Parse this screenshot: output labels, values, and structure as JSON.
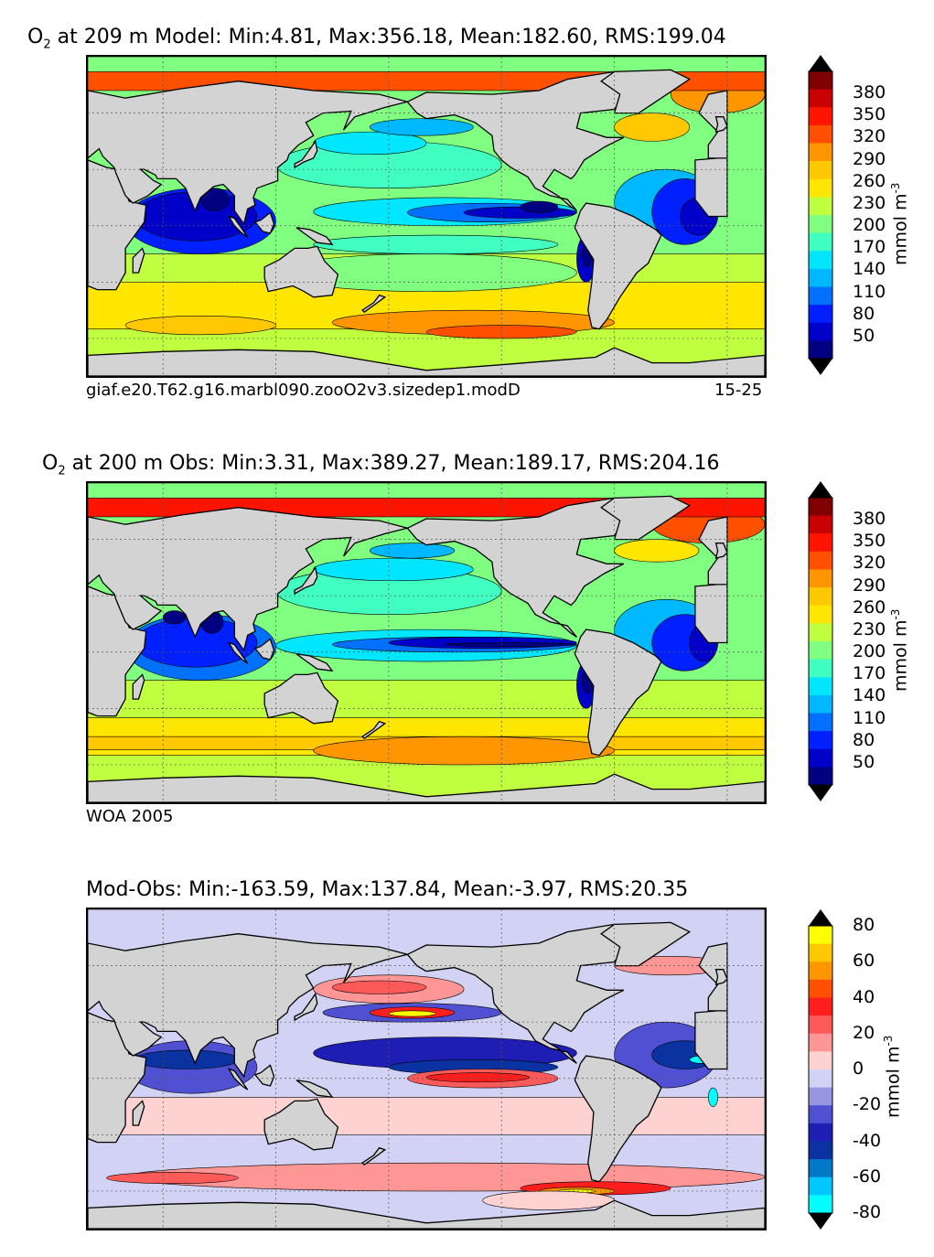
{
  "chart_data": [
    {
      "type": "heatmap",
      "title_prefix": "O",
      "title_sub": "2",
      "title_rest": " at 209 m Model: Min:4.81, Max:356.18, Mean:182.60, RMS:199.04",
      "stats": {
        "min": 4.81,
        "max": 356.18,
        "mean": 182.6,
        "rms": 199.04
      },
      "caption_left": "giaf.e20.T62.g16.marbl090.zooO2v3.sizedep1.modD",
      "caption_right": "15-25",
      "colorbar": {
        "ticks": [
          "380",
          "350",
          "320",
          "290",
          "260",
          "230",
          "200",
          "170",
          "140",
          "110",
          "80",
          "50"
        ],
        "label": "mmol m",
        "label_sup": "-3",
        "range": [
          20,
          410
        ],
        "extend": "both"
      },
      "grid": true
    },
    {
      "type": "heatmap",
      "title_prefix": "O",
      "title_sub": "2",
      "title_rest": " at 200 m Obs: Min:3.31, Max:389.27, Mean:189.17, RMS:204.16",
      "stats": {
        "min": 3.31,
        "max": 389.27,
        "mean": 189.17,
        "rms": 204.16
      },
      "caption_left": "WOA 2005",
      "caption_right": "",
      "colorbar": {
        "ticks": [
          "380",
          "350",
          "320",
          "290",
          "260",
          "230",
          "200",
          "170",
          "140",
          "110",
          "80",
          "50"
        ],
        "label": "mmol m",
        "label_sup": "-3",
        "range": [
          20,
          410
        ],
        "extend": "both"
      },
      "grid": true
    },
    {
      "type": "heatmap",
      "title": "Mod-Obs: Min:-163.59, Max:137.84, Mean:-3.97, RMS:20.35",
      "stats": {
        "min": -163.59,
        "max": 137.84,
        "mean": -3.97,
        "rms": 20.35
      },
      "colorbar": {
        "ticks": [
          "80",
          "60",
          "40",
          "20",
          "0",
          "-20",
          "-40",
          "-60",
          "-80"
        ],
        "label": "mmol m",
        "label_sup": "-3",
        "range": [
          -80,
          80
        ],
        "extend": "both"
      },
      "grid": true
    }
  ],
  "colors": {
    "o2_scale": [
      "#000080",
      "#0000c8",
      "#0020ff",
      "#0070ff",
      "#00b8ff",
      "#00e6ff",
      "#40ffc0",
      "#80ff80",
      "#c0ff40",
      "#ffe600",
      "#ffc800",
      "#ff9600",
      "#ff5000",
      "#ff1400",
      "#c80000",
      "#800000"
    ],
    "diff_scale": [
      "#00ffff",
      "#00c8ff",
      "#0078c8",
      "#0a32a0",
      "#1e1eb4",
      "#5050d2",
      "#9696e1",
      "#d2d2f5",
      "#ffd2d2",
      "#ff9696",
      "#ff5a5a",
      "#ff1e1e",
      "#ff5000",
      "#ff9600",
      "#ffc800",
      "#ffff00"
    ],
    "land": "#d3d3d3"
  }
}
